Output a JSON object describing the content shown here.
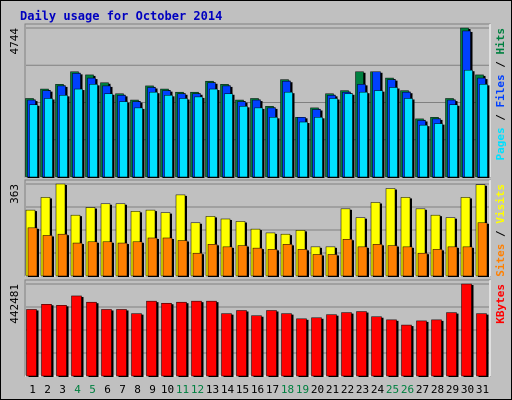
{
  "chart_data": {
    "type": "bar",
    "title": "Daily usage for October 2014",
    "colors": {
      "background": "#c0c0c0",
      "plot_background": "#c0c0c0",
      "grid": "#808080",
      "hits": "#008040",
      "files": "#0040ff",
      "pages": "#00e0ff",
      "visits": "#ffff00",
      "sites": "#ff8000",
      "kbytes": "#ff0000",
      "title": "#0000c0",
      "weekend_label": "#008040",
      "weekday_label": "#000000"
    },
    "days": [
      "1",
      "2",
      "3",
      "4",
      "5",
      "6",
      "7",
      "8",
      "9",
      "10",
      "11",
      "12",
      "13",
      "14",
      "15",
      "16",
      "17",
      "18",
      "19",
      "20",
      "21",
      "22",
      "23",
      "24",
      "25",
      "26",
      "27",
      "28",
      "29",
      "30",
      "31"
    ],
    "weekend_days": [
      "4",
      "5",
      "11",
      "12",
      "18",
      "19",
      "25",
      "26"
    ],
    "panels": [
      {
        "axis_max_label": "4744",
        "ylim": [
          0,
          4744
        ],
        "legend": [
          {
            "text": "Pages",
            "color": "#00e0ff"
          },
          {
            "text": "Files",
            "color": "#0040ff"
          },
          {
            "text": "Hits",
            "color": "#008040"
          }
        ],
        "series": [
          {
            "name": "Hits",
            "color": "#008040",
            "values": [
              2500,
              2800,
              2950,
              3350,
              3250,
              3000,
              2650,
              2450,
              2900,
              2800,
              2700,
              2700,
              3050,
              2950,
              2450,
              2500,
              2250,
              3100,
              1900,
              2200,
              2650,
              2750,
              3350,
              3350,
              3150,
              2750,
              1850,
              1900,
              2500,
              4744,
              3250
            ]
          },
          {
            "name": "Files",
            "color": "#0040ff",
            "values": [
              2450,
              2750,
              2900,
              3300,
              3150,
              2900,
              2600,
              2400,
              2850,
              2750,
              2650,
              2650,
              3000,
              2900,
              2400,
              2450,
              2200,
              3050,
              1900,
              2150,
              2600,
              2700,
              2950,
              3350,
              3100,
              2700,
              1800,
              1850,
              2450,
              4650,
              3150
            ]
          },
          {
            "name": "Pages",
            "color": "#00e0ff",
            "values": [
              2300,
              2500,
              2600,
              2800,
              2950,
              2650,
              2400,
              2200,
              2700,
              2600,
              2500,
              2550,
              2800,
              2650,
              2250,
              2200,
              1900,
              2700,
              1750,
              1900,
              2500,
              2650,
              2700,
              2750,
              2850,
              2500,
              1650,
              1700,
              2300,
              3400,
              2950
            ]
          }
        ]
      },
      {
        "axis_max_label": "363",
        "ylim": [
          0,
          363
        ],
        "legend": [
          {
            "text": "Sites",
            "color": "#ff8000"
          },
          {
            "text": "Visits",
            "color": "#ffff00"
          }
        ],
        "series": [
          {
            "name": "Visits",
            "color": "#ffff00",
            "values": [
              260,
              310,
              363,
              240,
              270,
              285,
              285,
              255,
              260,
              250,
              320,
              210,
              235,
              225,
              215,
              185,
              170,
              165,
              180,
              115,
              115,
              265,
              230,
              290,
              345,
              310,
              265,
              240,
              230,
              310,
              360
            ]
          },
          {
            "name": "Sites",
            "color": "#ff8000",
            "values": [
              190,
              160,
              165,
              130,
              135,
              135,
              130,
              135,
              150,
              150,
              140,
              90,
              125,
              115,
              120,
              110,
              105,
              125,
              105,
              85,
              85,
              145,
              115,
              125,
              120,
              115,
              90,
              105,
              115,
              115,
              210
            ]
          }
        ]
      },
      {
        "axis_max_label": "442481",
        "ylim": [
          0,
          442481
        ],
        "legend": [
          {
            "text": "KBytes",
            "color": "#ff0000"
          }
        ],
        "series": [
          {
            "name": "KBytes",
            "color": "#ff0000",
            "values": [
              320000,
              345000,
              340000,
              385000,
              355000,
              320000,
              320000,
              300000,
              360000,
              350000,
              355000,
              360000,
              360000,
              300000,
              315000,
              290000,
              315000,
              300000,
              275000,
              280000,
              295000,
              305000,
              310000,
              285000,
              270000,
              245000,
              265000,
              270000,
              305000,
              442481,
              300000
            ]
          }
        ]
      }
    ]
  }
}
